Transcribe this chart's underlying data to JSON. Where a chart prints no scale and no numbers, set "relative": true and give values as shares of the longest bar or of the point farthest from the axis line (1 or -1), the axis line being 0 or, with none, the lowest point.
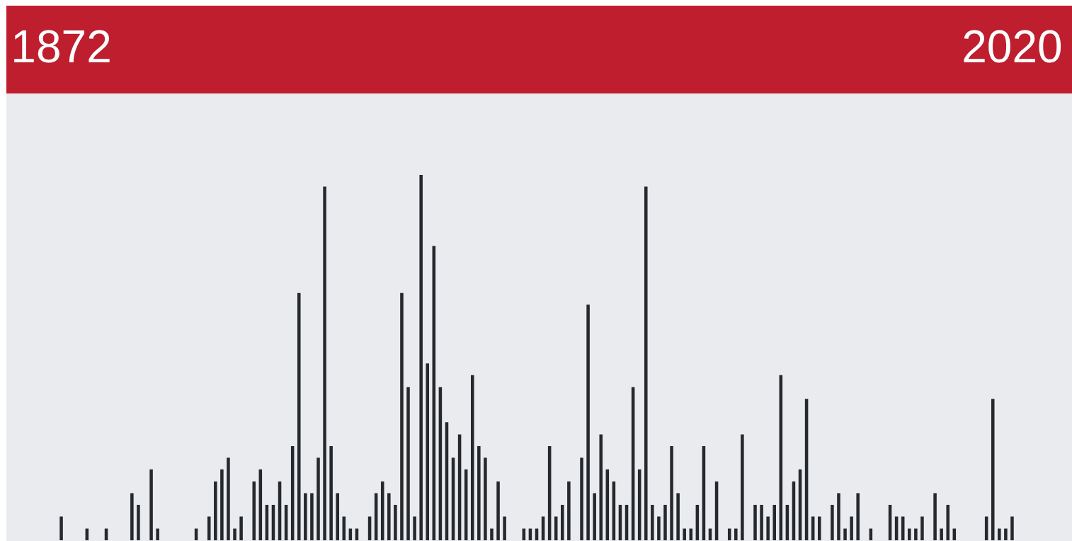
{
  "chart_data": {
    "type": "bar",
    "relative": true,
    "color": "#25282c",
    "categories": [
      "1872",
      null,
      null,
      null,
      null,
      null,
      null,
      null,
      null,
      null,
      null,
      null,
      null,
      null,
      null,
      null,
      null,
      null,
      null,
      null,
      null,
      null,
      null,
      null,
      null,
      null,
      null,
      null,
      null,
      null,
      null,
      null,
      null,
      null,
      null,
      null,
      null,
      null,
      null,
      null,
      null,
      null,
      null,
      null,
      null,
      null,
      null,
      null,
      null,
      null,
      null,
      null,
      null,
      null,
      null,
      null,
      null,
      null,
      null,
      null,
      null,
      null,
      null,
      null,
      null,
      null,
      null,
      null,
      null,
      null,
      null,
      null,
      null,
      null,
      null,
      null,
      null,
      null,
      null,
      null,
      null,
      null,
      null,
      null,
      null,
      null,
      null,
      null,
      null,
      null,
      null,
      null,
      null,
      null,
      null,
      null,
      null,
      null,
      null,
      null,
      null,
      null,
      null,
      null,
      null,
      null,
      null,
      null,
      null,
      null,
      null,
      null,
      null,
      null,
      null,
      null,
      null,
      null,
      null,
      null,
      null,
      null,
      null,
      null,
      null,
      null,
      null,
      null,
      null,
      null,
      null,
      null,
      null,
      null,
      null,
      null,
      null,
      null,
      null,
      null,
      null,
      null,
      null,
      null,
      null,
      null,
      null,
      null,
      "2020"
    ],
    "values": [
      0.065,
      0,
      0,
      0,
      0.032,
      0,
      0,
      0.032,
      0,
      0,
      0,
      0.129,
      0.097,
      0,
      0.194,
      0.032,
      0,
      0,
      0,
      0,
      0,
      0.032,
      0,
      0.065,
      0.161,
      0.194,
      0.226,
      0.032,
      0.065,
      0,
      0.161,
      0.194,
      0.097,
      0.097,
      0.161,
      0.097,
      0.258,
      0.677,
      0.129,
      0.129,
      0.226,
      0.968,
      0.258,
      0.129,
      0.065,
      0.032,
      0.032,
      0,
      0.065,
      0.129,
      0.161,
      0.129,
      0.097,
      0.677,
      0.419,
      0.065,
      1,
      0.484,
      0.806,
      0.419,
      0.323,
      0.226,
      0.29,
      0.194,
      0.452,
      0.258,
      0.226,
      0.032,
      0.161,
      0.065,
      0,
      0,
      0.032,
      0.032,
      0.032,
      0.065,
      0.258,
      0.065,
      0.097,
      0.161,
      0,
      0.226,
      0.645,
      0.129,
      0.29,
      0.194,
      0.161,
      0.097,
      0.097,
      0.419,
      0.194,
      0.968,
      0.097,
      0.065,
      0.097,
      0.258,
      0.129,
      0.032,
      0.032,
      0.097,
      0.258,
      0.032,
      0.161,
      0,
      0.032,
      0.032,
      0.29,
      0,
      0.097,
      0.097,
      0.065,
      0.097,
      0.452,
      0.097,
      0.161,
      0.194,
      0.387,
      0.065,
      0.065,
      0,
      0.097,
      0.129,
      0.032,
      0.065,
      0.129,
      0,
      0.032,
      0,
      0,
      0.097,
      0.065,
      0.065,
      0.032,
      0.032,
      0.065,
      0,
      0.129,
      0.032,
      0.097,
      0.032,
      0,
      0,
      0,
      0,
      0.065,
      0.387,
      0.032,
      0.032,
      0.065
    ]
  }
}
